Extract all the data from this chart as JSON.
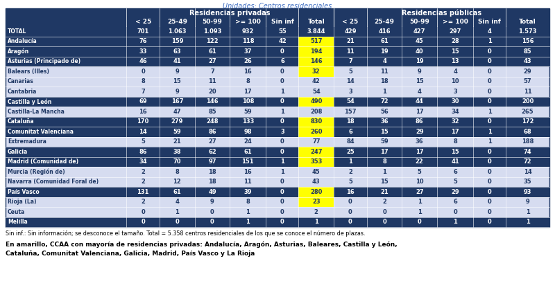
{
  "title": "Unidades: Centros residenciales",
  "header1_priv": "Residencias privadas",
  "header1_pub": "Residencias públicas",
  "header2": [
    "< 25",
    "25-49",
    "50-99",
    ">= 100",
    "Sin inf",
    "Total",
    "< 25",
    "25-49",
    "50-99",
    ">= 100",
    "Sin inf",
    "Total"
  ],
  "rows": [
    [
      "TOTAL",
      "701",
      "1.063",
      "1.093",
      "932",
      "55",
      "3.844",
      "429",
      "416",
      "427",
      "297",
      "4",
      "1.573"
    ],
    [
      "Andalucía",
      "76",
      "159",
      "122",
      "118",
      "42",
      "517",
      "21",
      "61",
      "45",
      "28",
      "1",
      "156"
    ],
    [
      "Aragón",
      "33",
      "63",
      "61",
      "37",
      "0",
      "194",
      "11",
      "19",
      "40",
      "15",
      "0",
      "85"
    ],
    [
      "Asturias (Principado de)",
      "46",
      "41",
      "27",
      "26",
      "6",
      "146",
      "7",
      "4",
      "19",
      "13",
      "0",
      "43"
    ],
    [
      "Balears (Illes)",
      "0",
      "9",
      "7",
      "16",
      "0",
      "32",
      "5",
      "11",
      "9",
      "4",
      "0",
      "29"
    ],
    [
      "Canarias",
      "8",
      "15",
      "11",
      "8",
      "0",
      "42",
      "14",
      "18",
      "15",
      "10",
      "0",
      "57"
    ],
    [
      "Cantabria",
      "7",
      "9",
      "20",
      "17",
      "1",
      "54",
      "3",
      "1",
      "4",
      "3",
      "0",
      "11"
    ],
    [
      "Castilla y León",
      "69",
      "167",
      "146",
      "108",
      "0",
      "490",
      "54",
      "72",
      "44",
      "30",
      "0",
      "200"
    ],
    [
      "Castilla-La Mancha",
      "16",
      "47",
      "85",
      "59",
      "1",
      "208",
      "157",
      "56",
      "17",
      "34",
      "1",
      "265"
    ],
    [
      "Cataluña",
      "170",
      "279",
      "248",
      "133",
      "0",
      "830",
      "18",
      "36",
      "86",
      "32",
      "0",
      "172"
    ],
    [
      "Comunitat Valenciana",
      "14",
      "59",
      "86",
      "98",
      "3",
      "260",
      "6",
      "15",
      "29",
      "17",
      "1",
      "68"
    ],
    [
      "Extremadura",
      "5",
      "21",
      "27",
      "24",
      "0",
      "77",
      "84",
      "59",
      "36",
      "8",
      "1",
      "188"
    ],
    [
      "Galicia",
      "86",
      "38",
      "62",
      "61",
      "0",
      "247",
      "25",
      "17",
      "17",
      "15",
      "0",
      "74"
    ],
    [
      "Madrid (Comunidad de)",
      "34",
      "70",
      "97",
      "151",
      "1",
      "353",
      "1",
      "8",
      "22",
      "41",
      "0",
      "72"
    ],
    [
      "Murcia (Región de)",
      "2",
      "8",
      "18",
      "16",
      "1",
      "45",
      "2",
      "1",
      "5",
      "6",
      "0",
      "14"
    ],
    [
      "Navarra (Comunidad Foral de)",
      "2",
      "12",
      "18",
      "11",
      "0",
      "43",
      "5",
      "15",
      "10",
      "5",
      "0",
      "35"
    ],
    [
      "País Vasco",
      "131",
      "61",
      "49",
      "39",
      "0",
      "280",
      "16",
      "21",
      "27",
      "29",
      "0",
      "93"
    ],
    [
      "Rioja (La)",
      "2",
      "4",
      "9",
      "8",
      "0",
      "23",
      "0",
      "2",
      "1",
      "6",
      "0",
      "9"
    ],
    [
      "Ceuta",
      "0",
      "1",
      "0",
      "1",
      "0",
      "2",
      "0",
      "0",
      "1",
      "0",
      "0",
      "1"
    ],
    [
      "Melilla",
      "0",
      "0",
      "0",
      "1",
      "0",
      "1",
      "0",
      "0",
      "0",
      "1",
      "0",
      "1"
    ]
  ],
  "yellow_col_idx": 6,
  "yellow_rows": [
    "Andalucía",
    "Aragón",
    "Asturias (Principado de)",
    "Balears (Illes)",
    "Castilla y León",
    "Cataluña",
    "Comunitat Valenciana",
    "Galicia",
    "Madrid (Comunidad de)",
    "País Vasco",
    "Rioja (La)"
  ],
  "dark_rows": [
    "TOTAL",
    "Andalucía",
    "Aragón",
    "Asturias (Principado de)",
    "Castilla y León",
    "Cataluña",
    "Comunitat Valenciana",
    "Galicia",
    "Madrid (Comunidad de)",
    "País Vasco",
    "Melilla"
  ],
  "note1": "Sin inf.: Sin información; se desconoce el tamaño. Total = 5.358 centros residenciales de los que se conoce el número de plazas.",
  "note2": "En amarillo, CCAA con mayoría de residencias privadas: Andalucía, Aragón, Asturias, Baleares, Castilla y León,",
  "note3": "Cataluña, Comunitat Valenciana, Galicia, Madrid, País Vasco y La Rioja",
  "col_bg_dark": "#1F3864",
  "col_bg_medium": "#2E5496",
  "col_bg_light": "#D6DCF0",
  "text_white": "#FFFFFF",
  "text_dark": "#1F3864",
  "yellow_bg": "#FFFF00",
  "title_color": "#4472C4",
  "header_divider_color": "#FFFFFF"
}
